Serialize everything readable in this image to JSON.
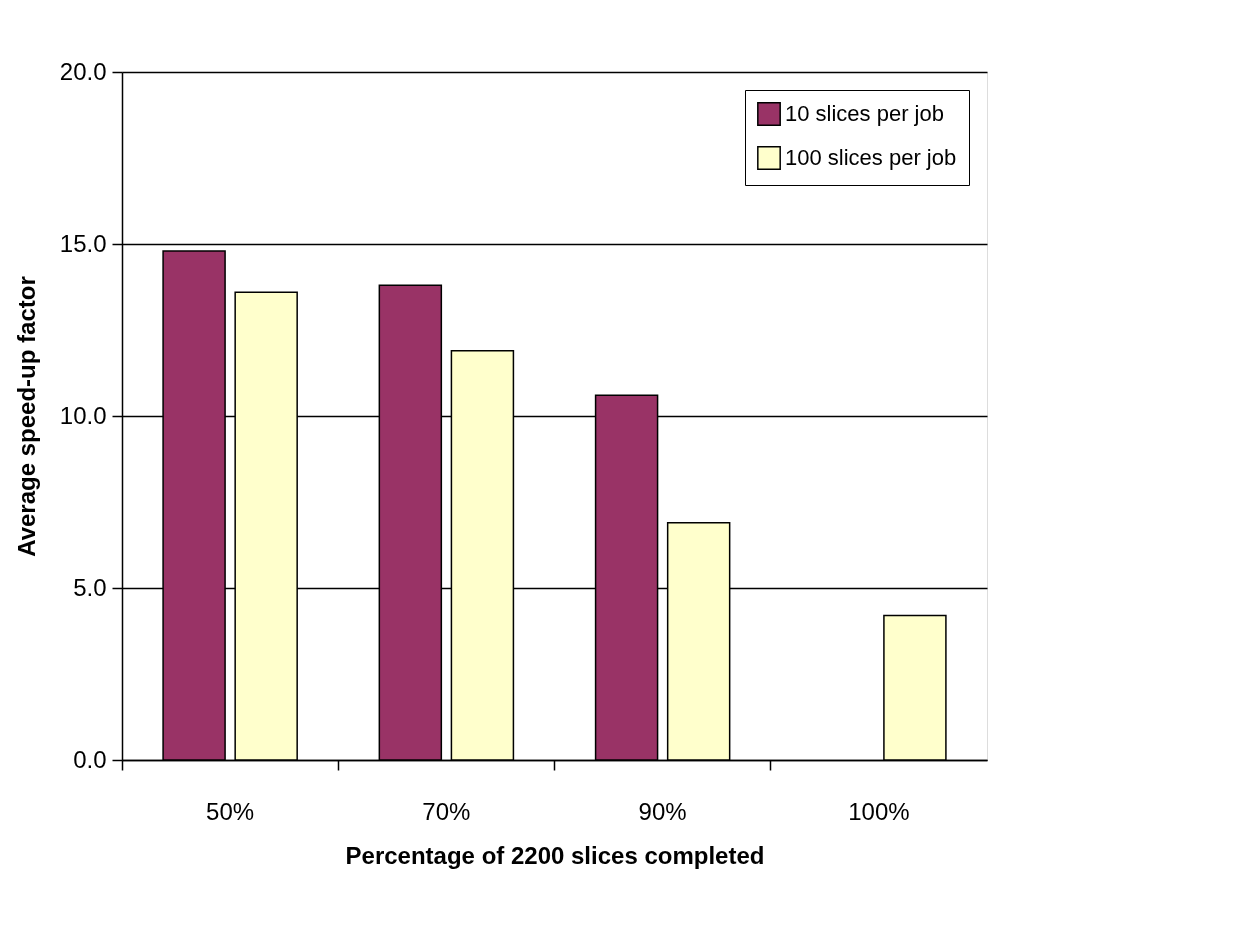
{
  "chart_data": {
    "type": "bar",
    "xlabel": "Percentage of 2200 slices completed",
    "ylabel": "Average speed-up factor",
    "categories": [
      "50%",
      "70%",
      "90%",
      "100%"
    ],
    "series": [
      {
        "name": "10 slices per job",
        "color": "#993366",
        "values": [
          14.8,
          13.8,
          10.6,
          null
        ]
      },
      {
        "name": "100 slices per job",
        "color": "#ffffcc",
        "values": [
          13.6,
          11.9,
          6.9,
          4.2
        ]
      }
    ],
    "ylim": [
      0,
      20
    ],
    "yticks": [
      {
        "value": 0,
        "label": "0.0"
      },
      {
        "value": 5,
        "label": "5.0"
      },
      {
        "value": 10,
        "label": "10.0"
      },
      {
        "value": 15,
        "label": "15.0"
      },
      {
        "value": 20,
        "label": "20.0"
      }
    ],
    "grid": "y",
    "legend": "top right"
  }
}
